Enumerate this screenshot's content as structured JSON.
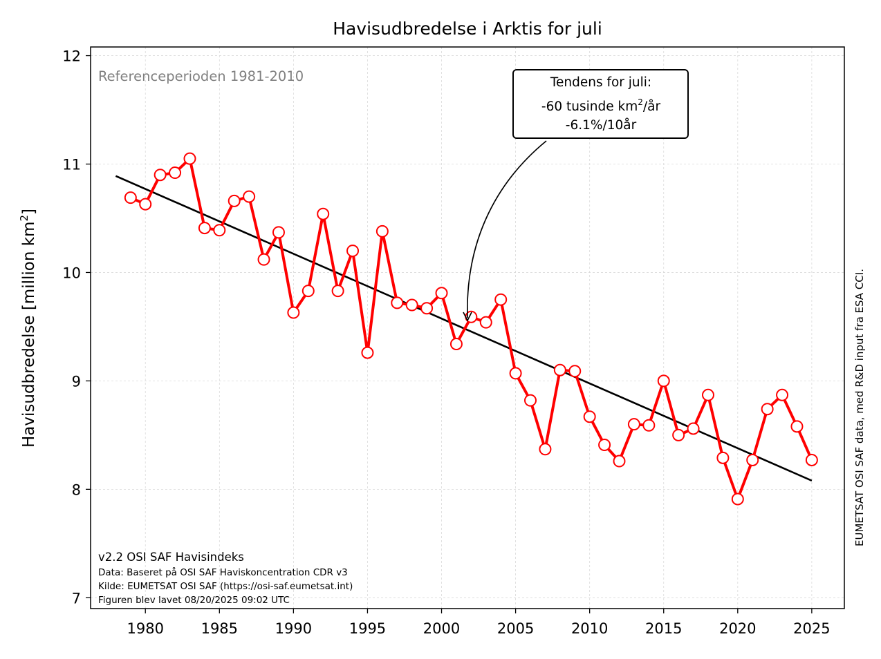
{
  "chart_data": {
    "type": "line",
    "title": "Havisudbredelse i Arktis for juli",
    "ylabel_text": "Havisudbredelse [million km",
    "ylabel_sup": "2",
    "ylabel_close": "]",
    "xlim": [
      1976.3,
      2027.2
    ],
    "ylim": [
      6.9,
      12.08
    ],
    "xticks": [
      "1980",
      "1985",
      "1990",
      "1995",
      "2000",
      "2005",
      "2010",
      "2015",
      "2020",
      "2025"
    ],
    "yticks": [
      "7",
      "8",
      "9",
      "10",
      "11",
      "12"
    ],
    "grid": true,
    "reference_text": "Referenceperioden 1981-2010",
    "series": [
      {
        "color": "#ff0000",
        "x": [
          1979,
          1980,
          1981,
          1982,
          1983,
          1984,
          1985,
          1986,
          1987,
          1988,
          1989,
          1990,
          1991,
          1992,
          1993,
          1994,
          1995,
          1996,
          1997,
          1998,
          1999,
          2000,
          2001,
          2002,
          2003,
          2004,
          2005,
          2006,
          2007,
          2008,
          2009,
          2010,
          2011,
          2012,
          2013,
          2014,
          2015,
          2016,
          2017,
          2018,
          2019,
          2020,
          2021,
          2022,
          2023,
          2024,
          2025
        ],
        "values": [
          10.69,
          10.63,
          10.9,
          10.92,
          11.05,
          10.41,
          10.39,
          10.66,
          10.7,
          10.12,
          10.37,
          9.63,
          9.83,
          10.54,
          9.83,
          10.2,
          9.26,
          10.38,
          9.72,
          9.7,
          9.67,
          9.81,
          9.34,
          9.59,
          9.54,
          9.75,
          9.07,
          8.82,
          8.37,
          9.1,
          9.09,
          8.67,
          8.41,
          8.26,
          8.6,
          8.59,
          9.0,
          8.5,
          8.56,
          8.87,
          8.29,
          7.91,
          8.27,
          8.74,
          8.87,
          8.58,
          8.27
        ]
      }
    ],
    "trend": {
      "color": "#000000",
      "x": [
        1978,
        2025
      ],
      "values": [
        10.89,
        8.08
      ]
    },
    "annotation": {
      "line1": "Tendens for juli:",
      "line2_pre": "-60 tusinde km",
      "line2_sup": "2",
      "line2_post": "/år",
      "line3": "-6.1%/10år",
      "target": [
        2001.5,
        9.53
      ]
    },
    "footer_lines": [
      "v2.2 OSI SAF Havisindeks",
      "Data: Baseret på OSI SAF Haviskoncentration CDR v3",
      "Kilde: EUMETSAT OSI SAF (https://osi-saf.eumetsat.int)",
      "Figuren blev lavet 08/20/2025 09:02 UTC"
    ],
    "side_note": "EUMETSAT OSI SAF data, med R&D input fra ESA CCI."
  }
}
